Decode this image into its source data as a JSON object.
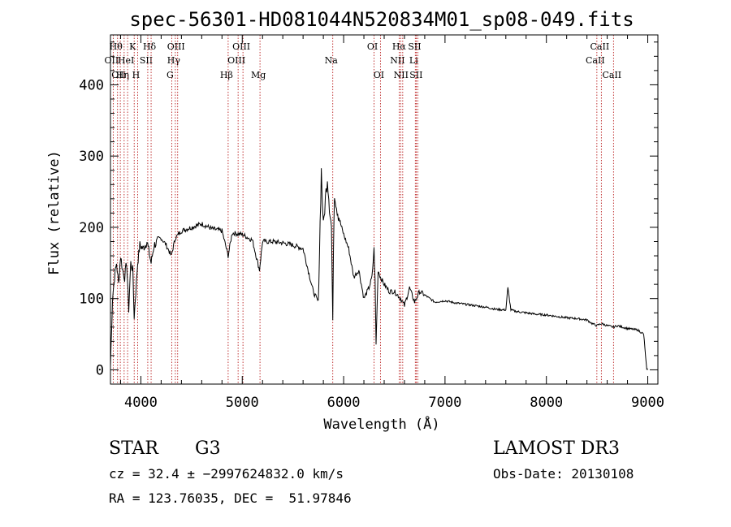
{
  "chart_data": {
    "type": "line",
    "title": "spec-56301-HD081044N520834M01_sp08-049.fits",
    "xlabel": "Wavelength (Å)",
    "ylabel": "Flux (relative)",
    "xlim": [
      3700,
      9100
    ],
    "ylim": [
      -20,
      470
    ],
    "x_ticks": [
      4000,
      5000,
      6000,
      7000,
      8000,
      9000
    ],
    "y_ticks": [
      0,
      100,
      200,
      300,
      400
    ],
    "grid": false,
    "series": [
      {
        "name": "flux",
        "x": [
          3700,
          3720,
          3740,
          3760,
          3780,
          3800,
          3820,
          3840,
          3860,
          3880,
          3900,
          3920,
          3934,
          3950,
          3968,
          3990,
          4020,
          4060,
          4101,
          4130,
          4200,
          4250,
          4300,
          4340,
          4400,
          4500,
          4600,
          4700,
          4800,
          4861,
          4900,
          5000,
          5100,
          5170,
          5200,
          5300,
          5400,
          5500,
          5600,
          5700,
          5750,
          5780,
          5800,
          5820,
          5840,
          5860,
          5880,
          5893,
          5900,
          5910,
          5930,
          5960,
          6000,
          6050,
          6100,
          6150,
          6200,
          6250,
          6280,
          6300,
          6310,
          6320,
          6340,
          6363,
          6400,
          6450,
          6500,
          6563,
          6600,
          6650,
          6700,
          6750,
          6800,
          6850,
          6900,
          7000,
          7100,
          7200,
          7300,
          7400,
          7500,
          7600,
          7620,
          7650,
          7700,
          7800,
          7900,
          8000,
          8100,
          8200,
          8300,
          8400,
          8450,
          8498,
          8542,
          8600,
          8662,
          8700,
          8800,
          8900,
          8960,
          8990,
          9000
        ],
        "y": [
          5,
          100,
          130,
          150,
          120,
          160,
          140,
          130,
          150,
          85,
          150,
          140,
          75,
          110,
          150,
          175,
          170,
          180,
          150,
          175,
          185,
          175,
          160,
          185,
          195,
          200,
          205,
          198,
          195,
          160,
          192,
          190,
          182,
          140,
          180,
          180,
          178,
          175,
          170,
          110,
          95,
          280,
          200,
          240,
          270,
          230,
          200,
          60,
          180,
          250,
          230,
          210,
          190,
          170,
          130,
          140,
          100,
          115,
          130,
          170,
          125,
          35,
          140,
          130,
          120,
          110,
          110,
          100,
          90,
          115,
          95,
          110,
          105,
          100,
          95,
          97,
          94,
          92,
          90,
          88,
          85,
          84,
          115,
          84,
          82,
          80,
          78,
          77,
          75,
          73,
          72,
          70,
          65,
          62,
          65,
          62,
          60,
          62,
          58,
          56,
          50,
          0,
          0
        ]
      }
    ],
    "line_markers": [
      {
        "wavelength": 3727,
        "label": "OII",
        "row": 2
      },
      {
        "wavelength": 3770,
        "label": "Hθ",
        "row": 1
      },
      {
        "wavelength": 3797,
        "label": "OII",
        "row": 3
      },
      {
        "wavelength": 3835,
        "label": "Hη",
        "row": 3
      },
      {
        "wavelength": 3869,
        "label": "HeI",
        "row": 2
      },
      {
        "wavelength": 3934,
        "label": "K",
        "row": 1
      },
      {
        "wavelength": 3968,
        "label": "H",
        "row": 3
      },
      {
        "wavelength": 4068,
        "label": "SII",
        "row": 2
      },
      {
        "wavelength": 4101,
        "label": "Hδ",
        "row": 1
      },
      {
        "wavelength": 4304,
        "label": "G",
        "row": 3
      },
      {
        "wavelength": 4340,
        "label": "Hγ",
        "row": 2
      },
      {
        "wavelength": 4363,
        "label": "OIII",
        "row": 1
      },
      {
        "wavelength": 4861,
        "label": "Hβ",
        "row": 3
      },
      {
        "wavelength": 4959,
        "label": "OIII",
        "row": 2
      },
      {
        "wavelength": 5007,
        "label": "OIII",
        "row": 1
      },
      {
        "wavelength": 5175,
        "label": "Mg",
        "row": 3
      },
      {
        "wavelength": 5893,
        "label": "Na",
        "row": 2
      },
      {
        "wavelength": 6300,
        "label": "OI",
        "row": 1
      },
      {
        "wavelength": 6363,
        "label": "OI",
        "row": 3
      },
      {
        "wavelength": 6548,
        "label": "NII",
        "row": 2
      },
      {
        "wavelength": 6563,
        "label": "Hα",
        "row": 1
      },
      {
        "wavelength": 6583,
        "label": "NII",
        "row": 3
      },
      {
        "wavelength": 6707,
        "label": "Li",
        "row": 2
      },
      {
        "wavelength": 6716,
        "label": "SII",
        "row": 1
      },
      {
        "wavelength": 6731,
        "label": "SII",
        "row": 3
      },
      {
        "wavelength": 8498,
        "label": "CaII",
        "row": 2
      },
      {
        "wavelength": 8542,
        "label": "CaII",
        "row": 1
      },
      {
        "wavelength": 8662,
        "label": "CaII",
        "row": 3
      }
    ],
    "colors": {
      "spectrum": "#000000",
      "markers": "#b00000",
      "axes": "#000000"
    }
  },
  "footer": {
    "object_class": "STAR",
    "subclass": "G3",
    "survey": "LAMOST DR3",
    "redshift": "cz = 32.4 ± −2997624832.0 km/s",
    "obs_date": "Obs-Date: 20130108",
    "coords": "RA = 123.76035, DEC =  51.97846"
  }
}
